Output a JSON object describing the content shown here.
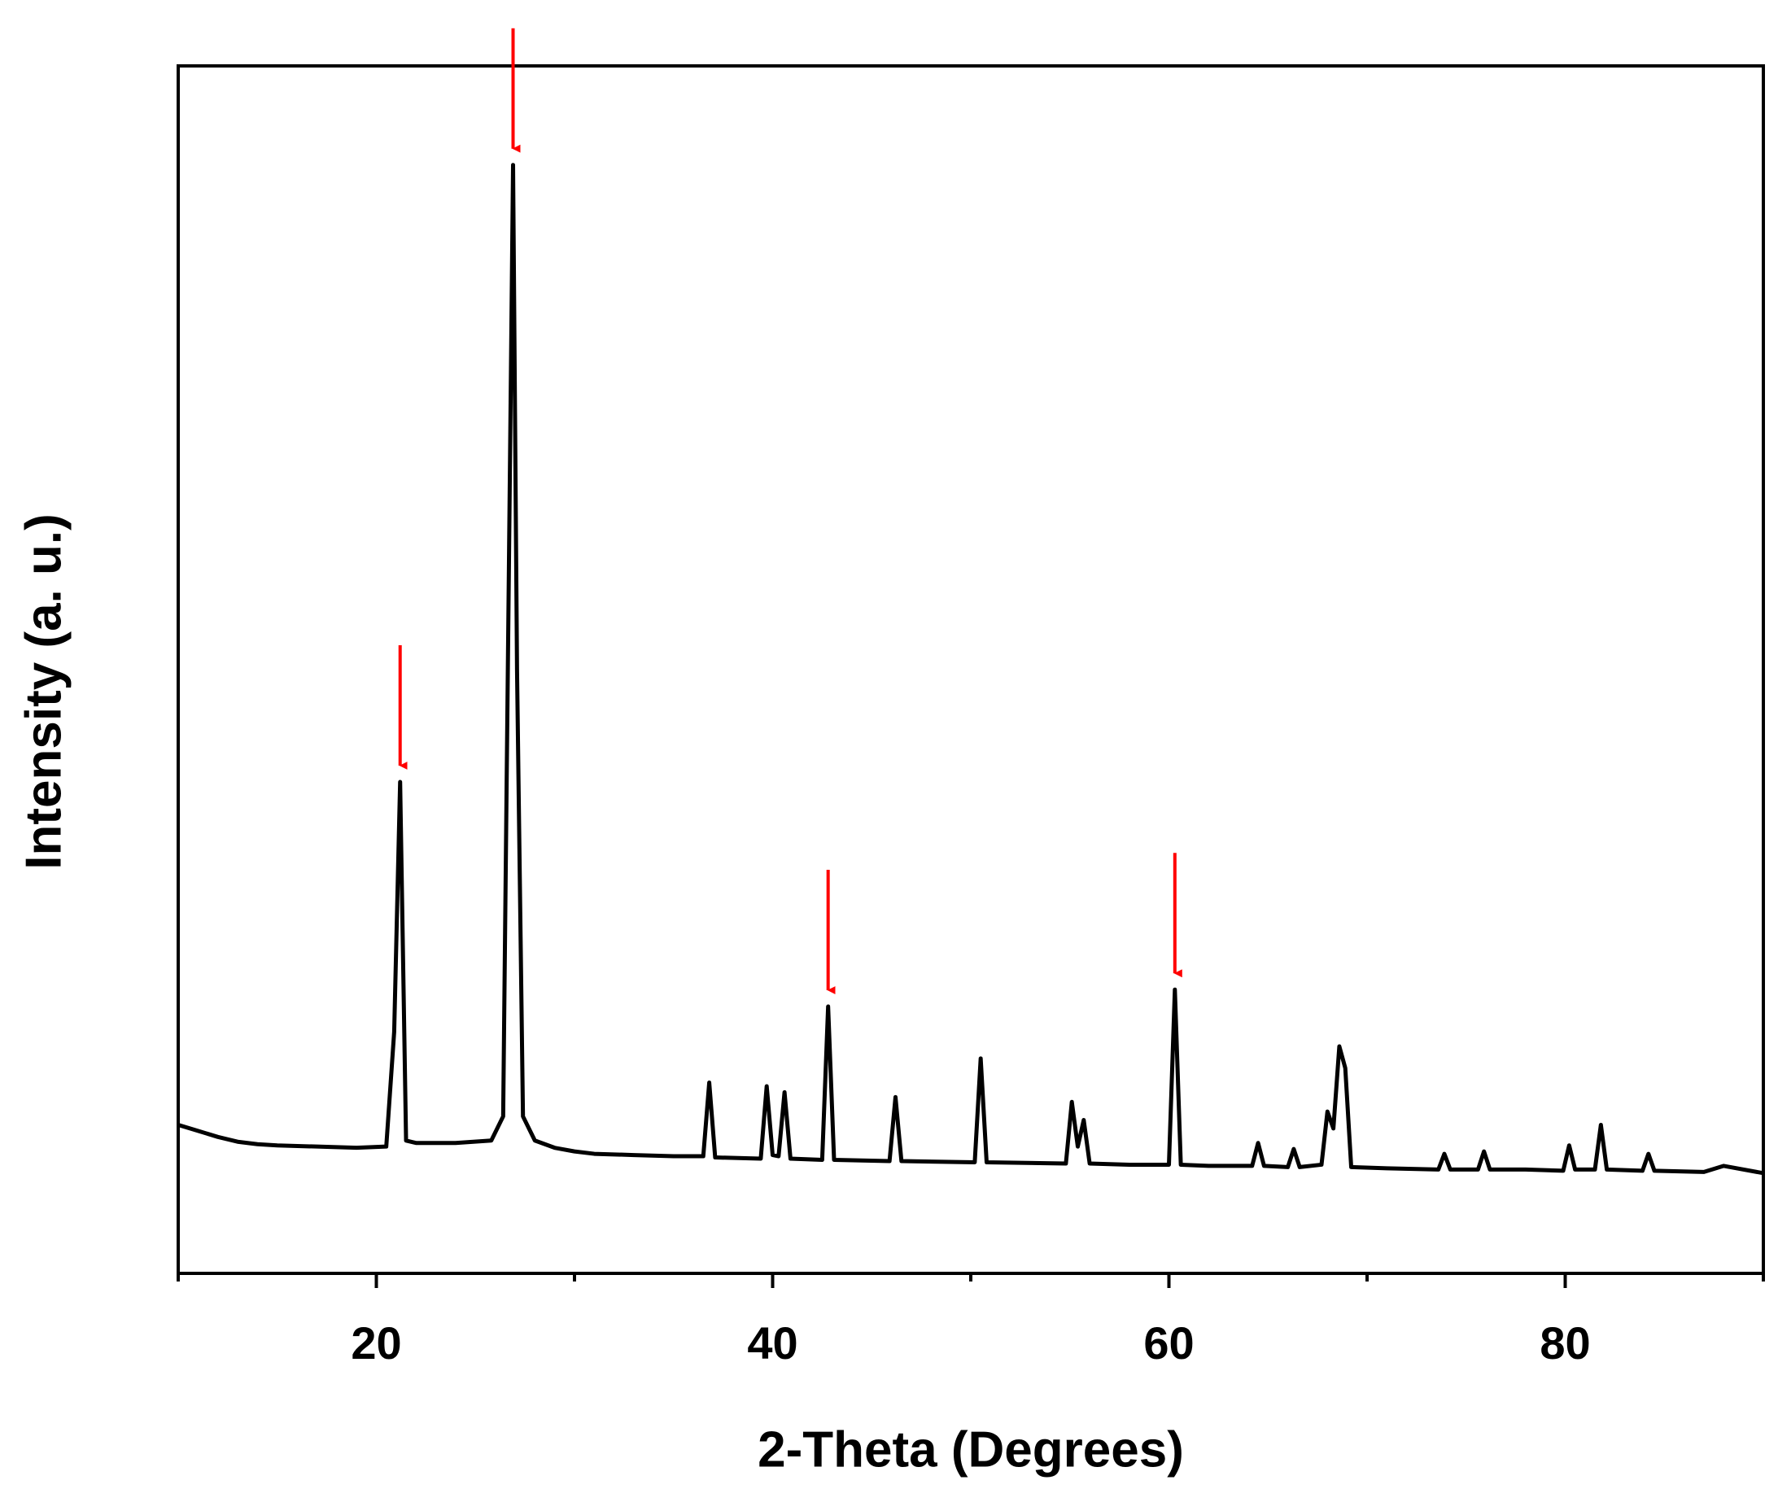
{
  "chart_data": {
    "type": "line",
    "x_label": "2-Theta (Degrees)",
    "y_label": "Intensity (a. u.)",
    "xlim": [
      10,
      90
    ],
    "ylim": [
      0,
      100
    ],
    "xticks": [
      20,
      40,
      60,
      80
    ],
    "xminorticks": [
      10,
      30,
      50,
      70,
      90
    ],
    "color": "#000000",
    "arrow_color": "#ff0000",
    "arrow_x": [
      21.2,
      26.9,
      42.8,
      60.3
    ],
    "x": [
      10,
      11,
      12,
      13,
      14,
      15,
      17,
      19,
      20.5,
      20.9,
      21.2,
      21.5,
      22,
      24,
      25.8,
      26.4,
      26.7,
      26.9,
      27.1,
      27.4,
      28,
      29,
      30,
      31,
      33,
      35,
      36.5,
      36.8,
      37.1,
      39.4,
      39.7,
      40.0,
      40.3,
      40.6,
      40.9,
      42.5,
      42.8,
      43.1,
      45.9,
      46.2,
      46.5,
      50.2,
      50.5,
      50.8,
      54.8,
      55.1,
      55.4,
      55.7,
      56.0,
      58,
      60.0,
      60.3,
      60.6,
      62,
      64.2,
      64.5,
      64.8,
      66.0,
      66.3,
      66.6,
      67.7,
      68.0,
      68.3,
      68.6,
      68.9,
      69.2,
      71,
      73.6,
      73.9,
      74.2,
      75.6,
      75.9,
      76.2,
      78,
      79.9,
      80.2,
      80.5,
      81.5,
      81.8,
      82.1,
      83.9,
      84.2,
      84.5,
      87,
      88,
      90
    ],
    "values": [
      12.3,
      11.8,
      11.3,
      10.9,
      10.7,
      10.6,
      10.5,
      10.4,
      10.5,
      20,
      40.7,
      11,
      10.8,
      10.8,
      11,
      13,
      60,
      91.8,
      50,
      13,
      11,
      10.4,
      10.1,
      9.9,
      9.8,
      9.7,
      9.7,
      15.8,
      9.6,
      9.5,
      15.5,
      9.8,
      9.7,
      15.0,
      9.5,
      9.4,
      22.1,
      9.4,
      9.3,
      14.6,
      9.3,
      9.2,
      17.8,
      9.2,
      9.1,
      14.2,
      10.5,
      12.7,
      9.1,
      9.0,
      9.0,
      23.5,
      9.0,
      8.9,
      8.9,
      10.8,
      8.9,
      8.8,
      10.3,
      8.8,
      9.0,
      13.4,
      12,
      18.8,
      17,
      8.8,
      8.7,
      8.6,
      9.9,
      8.6,
      8.6,
      10.1,
      8.6,
      8.6,
      8.5,
      10.6,
      8.6,
      8.6,
      12.3,
      8.6,
      8.5,
      9.9,
      8.5,
      8.4,
      8.9,
      8.3
    ]
  }
}
